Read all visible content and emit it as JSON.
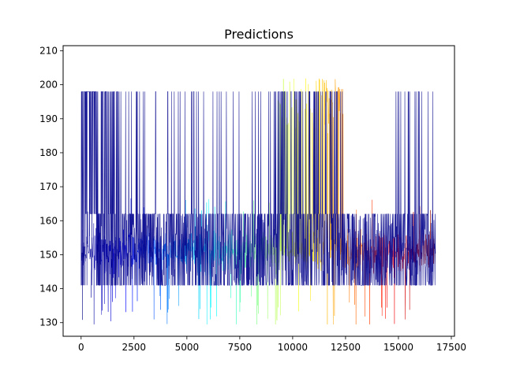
{
  "chart_data": {
    "type": "line",
    "title": "Predictions",
    "xlabel": "",
    "ylabel": "",
    "xlim": [
      -850,
      17650
    ],
    "ylim": [
      126,
      211.5
    ],
    "x_ticks": [
      0,
      2500,
      5000,
      7500,
      10000,
      12500,
      15000,
      17500
    ],
    "x_tick_labels": [
      "0",
      "2500",
      "5000",
      "7500",
      "10000",
      "12500",
      "15000",
      "17500"
    ],
    "y_ticks": [
      130,
      140,
      150,
      160,
      170,
      180,
      190,
      200,
      210
    ],
    "y_tick_labels": [
      "130",
      "140",
      "150",
      "160",
      "170",
      "180",
      "190",
      "200",
      "210"
    ],
    "grid": false,
    "legend": "none",
    "x_range": [
      0,
      16750
    ],
    "colormap": "jet",
    "series": [
      {
        "role": "target",
        "color": "#00008b",
        "levels": [
          141,
          162,
          198
        ],
        "clip_band": [
          141,
          162
        ]
      },
      {
        "role": "prediction",
        "colormap": "jet",
        "values_min": 129.5,
        "values_max": 207.5,
        "typical_band": [
          140,
          162
        ]
      }
    ]
  }
}
